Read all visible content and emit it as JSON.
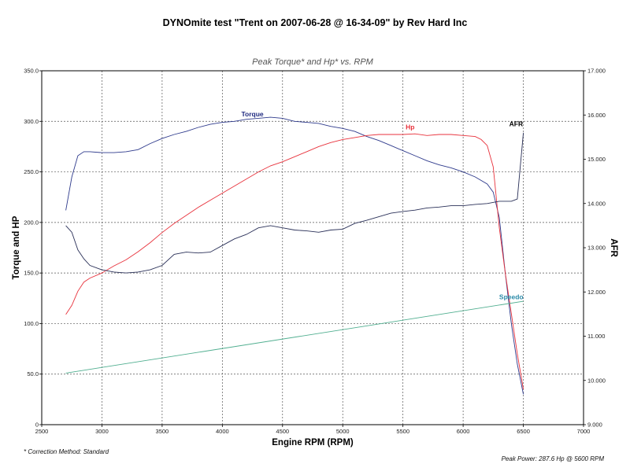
{
  "page": {
    "title": "DYNOmite test \"Trent on 2007-06-28 @ 16-34-09\" by Rev Hard Inc",
    "footnote": "* Correction Method: Standard",
    "peak_power": "Peak Power: 287.6 Hp @ 5600 RPM"
  },
  "chart_data": {
    "type": "line",
    "title": "Peak Torque* and Hp* vs. RPM",
    "xlabel": "Engine RPM (RPM)",
    "ylabel": "Torque and HP",
    "y2label": "AFR",
    "xlim": [
      2500,
      7000
    ],
    "ylim": [
      0,
      350
    ],
    "y2lim": [
      9.0,
      17.0
    ],
    "grid": true,
    "x_ticks": [
      "2500",
      "3000",
      "3500",
      "4000",
      "4500",
      "5000",
      "5500",
      "6000",
      "6500",
      "7000"
    ],
    "y_ticks": [
      "0",
      "50.0",
      "100.0",
      "150.0",
      "200.0",
      "250.0",
      "300.0",
      "350.0"
    ],
    "y2_ticks": [
      "9.000",
      "10.000",
      "11.000",
      "12.000",
      "13.000",
      "14.000",
      "15.000",
      "16.000",
      "17.000"
    ],
    "series": [
      {
        "name": "Torque",
        "axis": "left",
        "color": "#2e3a8c",
        "x": [
          2700,
          2750,
          2800,
          2850,
          2900,
          3000,
          3100,
          3200,
          3300,
          3400,
          3500,
          3600,
          3700,
          3800,
          3900,
          4000,
          4100,
          4200,
          4300,
          4400,
          4500,
          4600,
          4700,
          4800,
          4900,
          5000,
          5100,
          5200,
          5300,
          5400,
          5500,
          5600,
          5700,
          5800,
          5900,
          6000,
          6100,
          6200,
          6250,
          6300,
          6350,
          6400,
          6450,
          6500
        ],
        "values": [
          212,
          245,
          266,
          270,
          270,
          269,
          269,
          270,
          272,
          278,
          283,
          287,
          290,
          294,
          297,
          299,
          300,
          302,
          303,
          304,
          303,
          300,
          299,
          298,
          295,
          293,
          290,
          285,
          281,
          276,
          271,
          266,
          261,
          257,
          254,
          250,
          245,
          238,
          230,
          205,
          150,
          100,
          60,
          30
        ]
      },
      {
        "name": "Hp",
        "axis": "left",
        "color": "#e8323c",
        "x": [
          2700,
          2750,
          2800,
          2850,
          2900,
          3000,
          3100,
          3200,
          3300,
          3400,
          3500,
          3600,
          3700,
          3800,
          3900,
          4000,
          4100,
          4200,
          4300,
          4400,
          4500,
          4600,
          4700,
          4800,
          4900,
          5000,
          5100,
          5200,
          5300,
          5400,
          5500,
          5600,
          5700,
          5800,
          5900,
          6000,
          6100,
          6150,
          6200,
          6250,
          6300,
          6350,
          6400,
          6450,
          6500
        ],
        "values": [
          109,
          118,
          132,
          141,
          145,
          150,
          157,
          163,
          171,
          180,
          190,
          199,
          207,
          215,
          222,
          229,
          236,
          243,
          250,
          256,
          260,
          265,
          270,
          275,
          279,
          282,
          284,
          286,
          287,
          287,
          287,
          287.6,
          286,
          287,
          287,
          286,
          285,
          282,
          276,
          255,
          195,
          150,
          110,
          70,
          35
        ]
      },
      {
        "name": "AFR",
        "axis": "right",
        "color": "#2a3058",
        "x": [
          2700,
          2750,
          2800,
          2850,
          2900,
          3000,
          3100,
          3200,
          3300,
          3400,
          3500,
          3600,
          3700,
          3800,
          3900,
          4000,
          4100,
          4200,
          4300,
          4400,
          4500,
          4600,
          4700,
          4800,
          4900,
          5000,
          5100,
          5200,
          5300,
          5400,
          5500,
          5600,
          5700,
          5800,
          5900,
          6000,
          6100,
          6200,
          6300,
          6400,
          6450,
          6500
        ],
        "values": [
          13.5,
          13.35,
          12.95,
          12.75,
          12.6,
          12.5,
          12.45,
          12.43,
          12.45,
          12.5,
          12.6,
          12.85,
          12.9,
          12.88,
          12.9,
          13.05,
          13.2,
          13.3,
          13.45,
          13.5,
          13.45,
          13.4,
          13.38,
          13.35,
          13.4,
          13.42,
          13.55,
          13.62,
          13.7,
          13.78,
          13.82,
          13.85,
          13.9,
          13.92,
          13.95,
          13.95,
          13.98,
          14.0,
          14.05,
          14.05,
          14.1,
          15.6
        ]
      },
      {
        "name": "Speedo",
        "axis": "left",
        "color": "#4fae8f",
        "x": [
          2700,
          6500
        ],
        "values": [
          51,
          122
        ]
      }
    ]
  }
}
